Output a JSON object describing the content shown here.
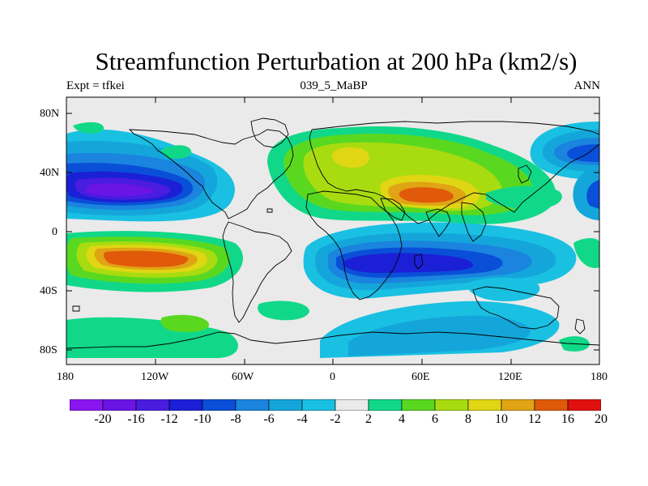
{
  "title": "Streamfunction Perturbation at 200 hPa (km2/s)",
  "subtitle_left": "Expt = tfkei",
  "subtitle_center": "039_5_MaBP",
  "subtitle_right": "ANN",
  "x_ticks": [
    "180",
    "120W",
    "60W",
    "0",
    "60E",
    "120E",
    "180"
  ],
  "y_ticks": [
    "80N",
    "40N",
    "0",
    "40S",
    "80S"
  ],
  "colorbar": {
    "labels": [
      "-20",
      "-16",
      "-12",
      "-10",
      "-8",
      "-6",
      "-4",
      "-2",
      "2",
      "4",
      "6",
      "8",
      "10",
      "12",
      "16",
      "20"
    ],
    "colors": [
      "#8a16f0",
      "#6a14e6",
      "#4a1ce0",
      "#1b20d6",
      "#0a4fd8",
      "#1a84de",
      "#14a6da",
      "#19c0e2",
      "#eaeaea",
      "#10d888",
      "#5ad820",
      "#a8dc10",
      "#e0d614",
      "#e0a414",
      "#e05a0a",
      "#e01010"
    ]
  },
  "chart_data": {
    "type": "heatmap",
    "title": "Streamfunction Perturbation at 200 hPa (km2/s)",
    "units": "km2/s",
    "projection": "cylindrical equidistant, 180 to 180",
    "lon_range": [
      -180,
      180
    ],
    "lat_range": [
      -90,
      90
    ],
    "contour_levels": [
      -20,
      -16,
      -12,
      -10,
      -8,
      -6,
      -4,
      -2,
      2,
      4,
      6,
      8,
      10,
      12,
      16,
      20
    ],
    "features": [
      {
        "name": "N Pacific low",
        "lon": -135,
        "lat": 28,
        "value": -18
      },
      {
        "name": "S Pacific high",
        "lon": -110,
        "lat": -20,
        "value": 14
      },
      {
        "name": "Asian high",
        "lon": 60,
        "lat": 25,
        "value": 14
      },
      {
        "name": "N Africa high",
        "lon": 0,
        "lat": 45,
        "value": 8
      },
      {
        "name": "S Indian Ocean low",
        "lon": 45,
        "lat": -22,
        "value": -12
      },
      {
        "name": "NW Pacific low",
        "lon": 165,
        "lat": 50,
        "value": -8
      },
      {
        "name": "E Pacific low",
        "lon": 180,
        "lat": 25,
        "value": -6
      },
      {
        "name": "S Ocean low",
        "lon": 60,
        "lat": -72,
        "value": -6
      },
      {
        "name": "S Pacific high band",
        "lon": -100,
        "lat": -65,
        "value": 4
      }
    ]
  }
}
